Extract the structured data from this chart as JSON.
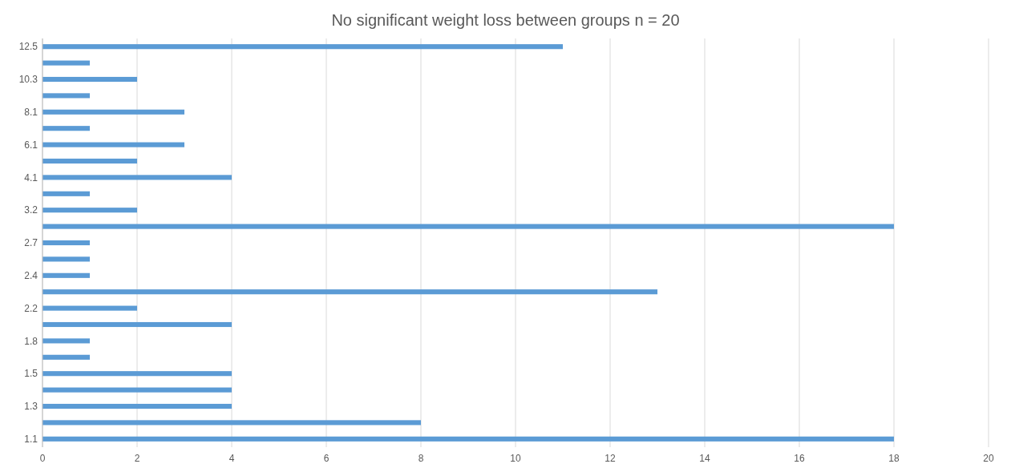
{
  "chart_data": {
    "type": "bar",
    "orientation": "horizontal",
    "title": "No significant weight loss between groups n = 20",
    "categories": [
      "12.5",
      null,
      "10.3",
      null,
      "8.1",
      null,
      "6.1",
      null,
      "4.1",
      null,
      "3.2",
      null,
      "2.7",
      null,
      "2.4",
      null,
      "2.2",
      null,
      "1.8",
      null,
      "1.5",
      null,
      "1.3",
      null,
      "1.1"
    ],
    "values": [
      11,
      1,
      2,
      1,
      3,
      1,
      3,
      2,
      4,
      1,
      2,
      18,
      1,
      1,
      1,
      13,
      2,
      4,
      1,
      1,
      4,
      4,
      4,
      8,
      18
    ],
    "color": "#5b9bd5",
    "xlim": [
      0,
      20
    ],
    "xticks": [
      0,
      2,
      4,
      6,
      8,
      10,
      12,
      14,
      16,
      18,
      20
    ],
    "grid": "x"
  }
}
